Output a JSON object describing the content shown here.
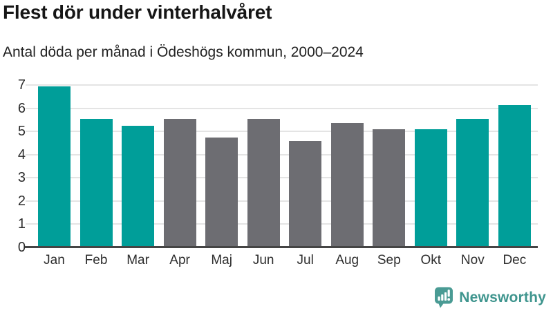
{
  "header": {
    "title": "Flest dör under vinterhalvåret",
    "subtitle": "Antal döda per månad i Ödeshögs kommun, 2000–2024"
  },
  "chart_data": {
    "type": "bar",
    "title": "Flest dör under vinterhalvåret",
    "subtitle": "Antal döda per månad i Ödeshögs kommun, 2000–2024",
    "categories": [
      "Jan",
      "Feb",
      "Mar",
      "Apr",
      "Maj",
      "Jun",
      "Jul",
      "Aug",
      "Sep",
      "Okt",
      "Nov",
      "Dec"
    ],
    "values": [
      6.95,
      5.55,
      5.25,
      5.55,
      4.75,
      5.55,
      4.6,
      5.35,
      5.1,
      5.1,
      5.55,
      6.15
    ],
    "groups": [
      "winter",
      "winter",
      "winter",
      "summer",
      "summer",
      "summer",
      "summer",
      "summer",
      "summer",
      "winter",
      "winter",
      "winter"
    ],
    "palette": {
      "winter": "#009e99",
      "summer": "#6d6d72"
    },
    "xlabel": "",
    "ylabel": "",
    "ylim": [
      0,
      7
    ],
    "yticks": [
      0,
      1,
      2,
      3,
      4,
      5,
      6,
      7
    ],
    "grid": true,
    "legend": false,
    "colors": {
      "gridline": "#e4e4e4",
      "axis_line": "#454545",
      "tick_text": "#2d2d2d"
    }
  },
  "footer": {
    "brand": "Newsworthy",
    "brand_color": "#3f958e",
    "icon": "newsworthy-speech-bubble-bar-chart-icon",
    "icon_color": "#4a9b94"
  }
}
